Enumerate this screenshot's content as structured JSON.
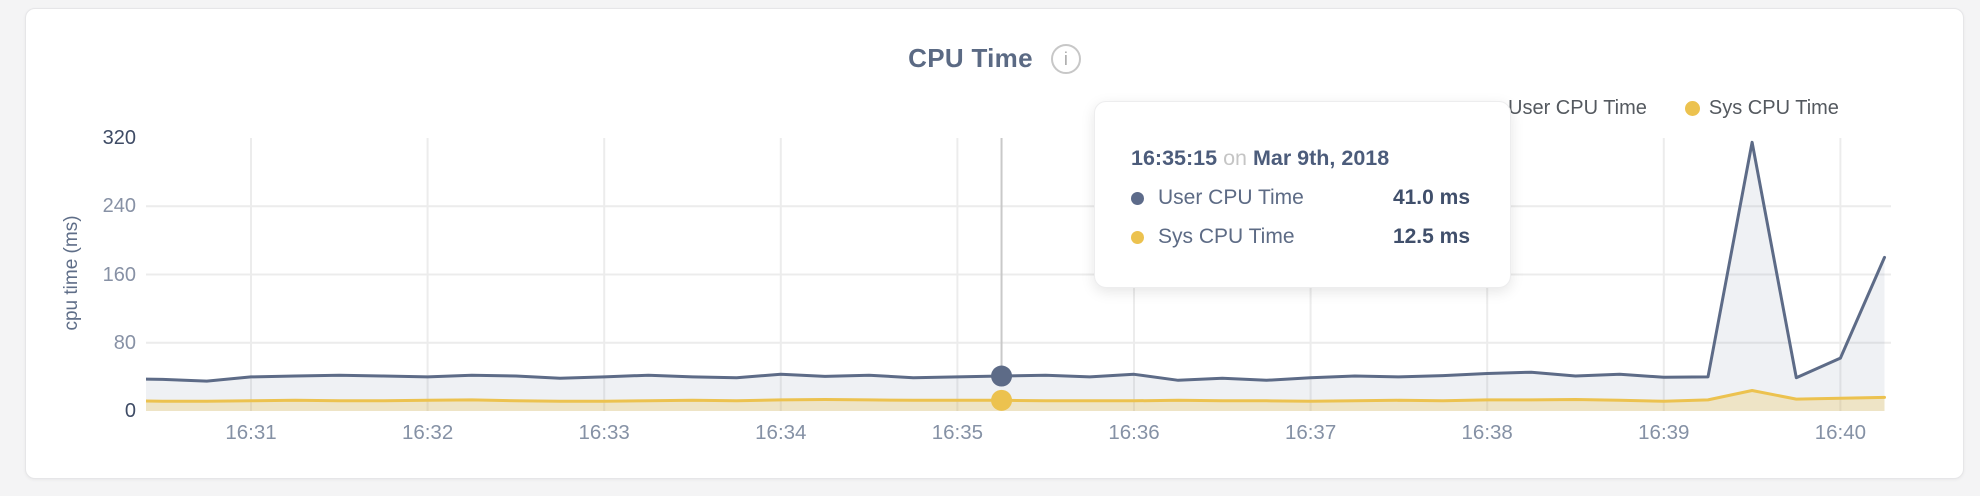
{
  "header": {
    "title": "CPU Time"
  },
  "legend": {
    "items": [
      {
        "label": "User CPU Time",
        "color": "#5d6b8a"
      },
      {
        "label": "Sys CPU Time",
        "color": "#ecc24f"
      }
    ]
  },
  "axes": {
    "y_title": "cpu time (ms)",
    "y_ticks": [
      320,
      240,
      160,
      80,
      0
    ],
    "x_ticks": [
      "16:31",
      "16:32",
      "16:33",
      "16:34",
      "16:35",
      "16:36",
      "16:37",
      "16:38",
      "16:39",
      "16:40"
    ]
  },
  "tooltip": {
    "time": "16:35:15",
    "on_word": "on",
    "date": "Mar 9th, 2018",
    "rows": [
      {
        "label": "User CPU Time",
        "value": "41.0 ms",
        "color": "#5d6b8a"
      },
      {
        "label": "Sys CPU Time",
        "value": "12.5 ms",
        "color": "#ecc24f"
      }
    ]
  },
  "colors": {
    "user_line": "#5d6b87",
    "user_fill": "rgba(99,113,144,0.10)",
    "sys_line": "#ecc24f",
    "sys_fill": "rgba(236,194,79,0.28)",
    "gridline": "#ececec",
    "crosshair": "#c9c9c9"
  },
  "chart_data": {
    "type": "area",
    "title": "CPU Time",
    "ylabel": "cpu time (ms)",
    "ylim": [
      0,
      320
    ],
    "x_tick_labels": [
      "16:31",
      "16:32",
      "16:33",
      "16:34",
      "16:35",
      "16:36",
      "16:37",
      "16:38",
      "16:39",
      "16:40"
    ],
    "legend_position": "top-right",
    "grid": true,
    "x": [
      "16:30:15",
      "16:30:30",
      "16:30:45",
      "16:31:00",
      "16:31:15",
      "16:31:30",
      "16:31:45",
      "16:32:00",
      "16:32:15",
      "16:32:30",
      "16:32:45",
      "16:33:00",
      "16:33:15",
      "16:33:30",
      "16:33:45",
      "16:34:00",
      "16:34:15",
      "16:34:30",
      "16:34:45",
      "16:35:00",
      "16:35:15",
      "16:35:30",
      "16:35:45",
      "16:36:00",
      "16:36:15",
      "16:36:30",
      "16:36:45",
      "16:37:00",
      "16:37:15",
      "16:37:30",
      "16:37:45",
      "16:38:00",
      "16:38:15",
      "16:38:30",
      "16:38:45",
      "16:39:00",
      "16:39:15",
      "16:39:30",
      "16:39:45",
      "16:40:00",
      "16:40:15"
    ],
    "series": [
      {
        "name": "User CPU Time",
        "color": "#5d6b87",
        "values": [
          38,
          37,
          35,
          40,
          41,
          42,
          41,
          40,
          42,
          41,
          38.5,
          40,
          42,
          40,
          39,
          43,
          40.5,
          42,
          39,
          40,
          41,
          42,
          40,
          43,
          36,
          38.5,
          36,
          39,
          41,
          40,
          41.5,
          44,
          45.5,
          41,
          43,
          39.5,
          40,
          315,
          39,
          62,
          180
        ]
      },
      {
        "name": "Sys CPU Time",
        "color": "#ecc24f",
        "values": [
          12,
          11.5,
          11.5,
          12,
          12.5,
          12,
          12,
          12.5,
          13,
          12,
          11.5,
          11.5,
          12,
          12.5,
          12,
          13,
          13.5,
          13,
          12.5,
          12.5,
          12.5,
          12,
          12,
          12,
          12.5,
          12,
          12,
          11.5,
          12,
          12.5,
          12,
          13,
          13,
          13.5,
          12.5,
          11.5,
          13,
          24,
          14,
          15,
          16
        ]
      }
    ],
    "highlight": {
      "time": "16:35:15",
      "date": "Mar 9th, 2018",
      "user_ms": 41.0,
      "sys_ms": 12.5
    }
  }
}
